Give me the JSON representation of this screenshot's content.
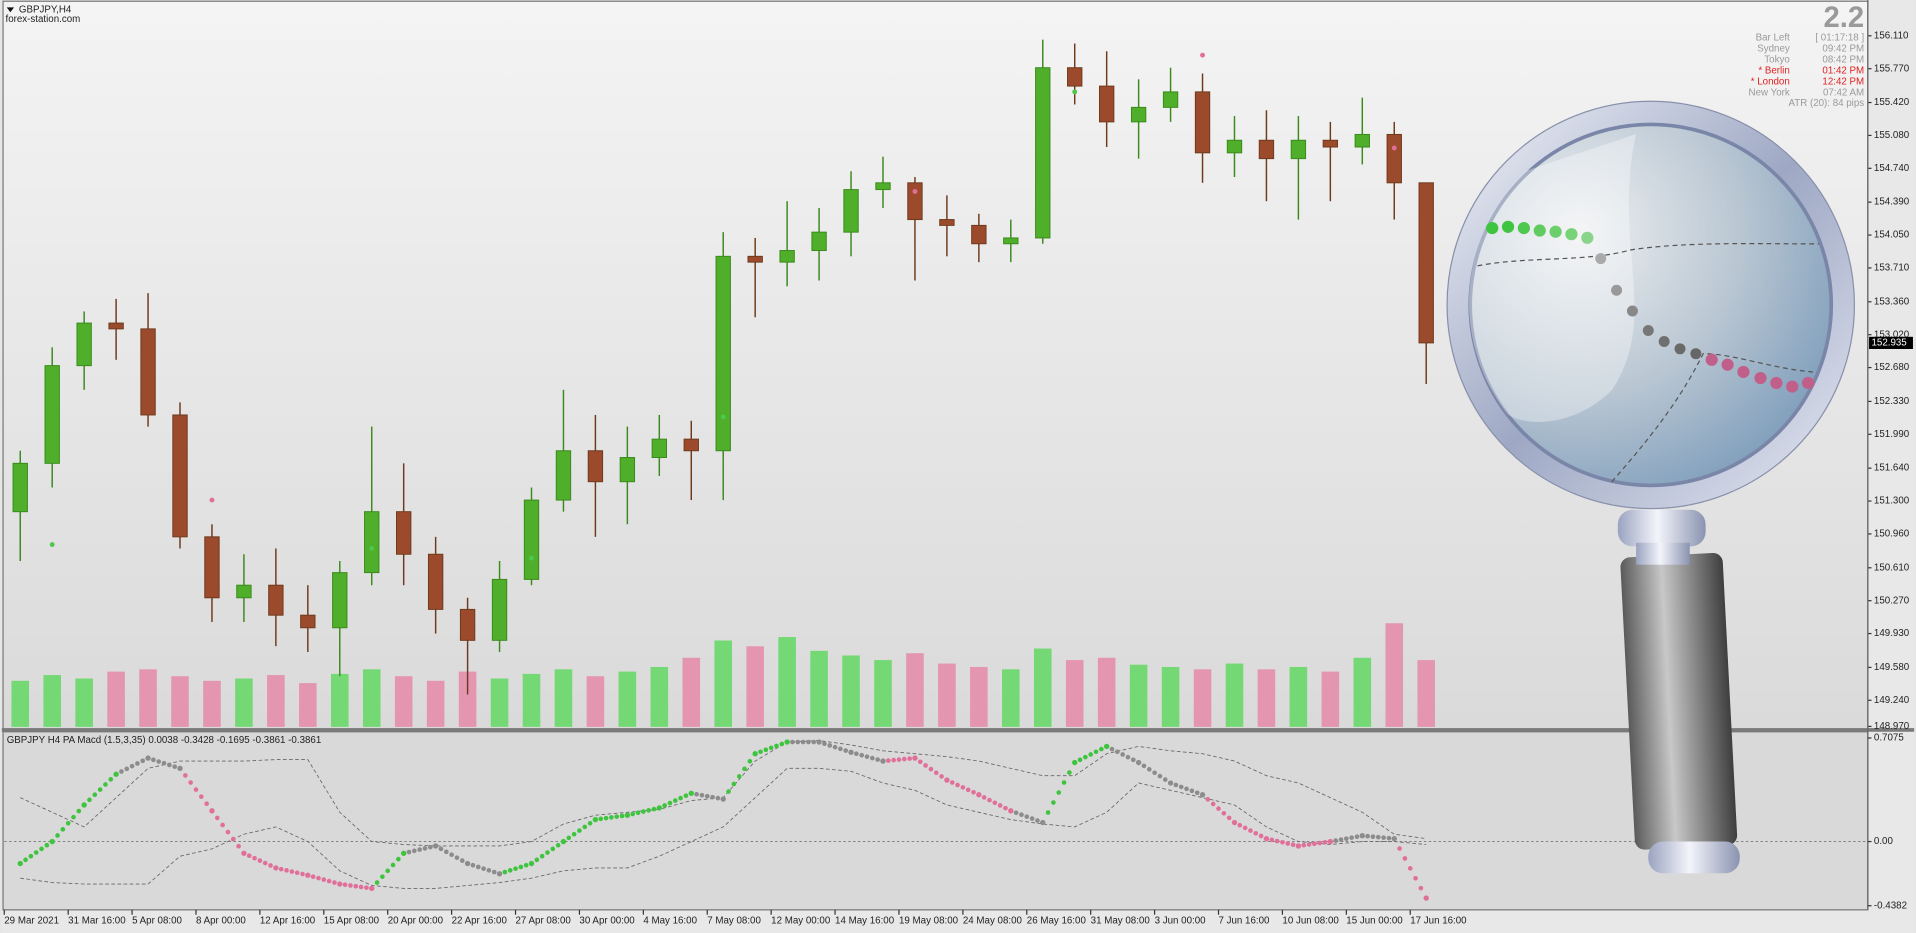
{
  "chart_data": [
    {
      "type": "candlestick",
      "title": "GBPJPY,H4",
      "subtitle": "forex-station.com",
      "categories": [
        "29 Mar 2021",
        null,
        "31 Mar 16:00",
        null,
        "5 Apr 08:00",
        null,
        "8 Apr 00:00",
        null,
        "12 Apr 16:00",
        null,
        "15 Apr 08:00",
        null,
        "20 Apr 00:00",
        null,
        "22 Apr 16:00",
        null,
        "27 Apr 08:00",
        null,
        "30 Apr 00:00",
        null,
        "4 May 16:00",
        null,
        "7 May 08:00",
        null,
        "12 May 00:00",
        null,
        "14 May 16:00",
        null,
        "19 May 08:00",
        null,
        "24 May 08:00",
        null,
        "26 May 16:00",
        null,
        "31 May 08:00",
        null,
        "3 Jun 00:00",
        null,
        "7 Jun 16:00",
        null,
        "10 Jun 08:00",
        null,
        "15 Jun 00:00",
        null,
        "17 Jun 16:00"
      ],
      "open": [
        151.19,
        151.69,
        152.7,
        153.14,
        153.08,
        152.19,
        150.93,
        150.3,
        150.43,
        150.12,
        149.99,
        150.56,
        151.19,
        150.75,
        150.18,
        149.86,
        150.49,
        151.31,
        151.82,
        151.5,
        151.75,
        151.94,
        151.82,
        153.83,
        153.77,
        153.89,
        154.08,
        154.52,
        154.59,
        154.21,
        154.15,
        153.96,
        154.02,
        155.78,
        155.59,
        155.22,
        155.37,
        155.53,
        154.9,
        155.03,
        154.84,
        155.03,
        154.96,
        155.09,
        154.59
      ],
      "high": [
        151.82,
        152.89,
        153.26,
        153.39,
        153.45,
        152.32,
        151.06,
        150.75,
        150.81,
        150.43,
        150.68,
        152.07,
        151.69,
        150.93,
        150.3,
        150.68,
        151.44,
        152.45,
        152.19,
        152.07,
        152.19,
        152.13,
        154.08,
        154.02,
        154.4,
        154.33,
        154.71,
        154.86,
        154.65,
        154.46,
        154.27,
        154.21,
        156.07,
        156.03,
        155.95,
        155.66,
        155.78,
        155.72,
        155.28,
        155.34,
        155.28,
        155.22,
        155.47,
        155.22,
        154.59
      ],
      "low": [
        150.68,
        151.44,
        152.45,
        152.76,
        152.07,
        150.81,
        150.05,
        150.05,
        149.8,
        149.74,
        149.49,
        150.43,
        150.43,
        149.93,
        149.3,
        149.74,
        150.43,
        151.19,
        150.93,
        151.06,
        151.56,
        151.31,
        151.31,
        153.2,
        153.52,
        153.58,
        153.83,
        154.33,
        153.58,
        153.83,
        153.77,
        153.77,
        153.96,
        155.4,
        154.96,
        154.84,
        155.22,
        154.59,
        154.65,
        154.4,
        154.21,
        154.4,
        154.78,
        154.21,
        152.51
      ],
      "close": [
        151.69,
        152.7,
        153.14,
        153.08,
        152.19,
        150.93,
        150.3,
        150.43,
        150.12,
        149.99,
        150.56,
        151.19,
        150.75,
        150.18,
        149.86,
        150.49,
        151.31,
        151.82,
        151.5,
        151.75,
        151.94,
        151.82,
        153.83,
        153.77,
        153.89,
        154.08,
        154.52,
        154.59,
        154.21,
        154.15,
        153.96,
        154.02,
        155.78,
        155.59,
        155.22,
        155.37,
        155.53,
        154.9,
        155.03,
        154.84,
        155.03,
        154.96,
        155.09,
        154.59,
        152.935
      ],
      "volume": [
        4000,
        4500,
        4200,
        4800,
        5000,
        4400,
        4000,
        4200,
        4500,
        3800,
        4600,
        5000,
        4400,
        4000,
        4800,
        4200,
        4600,
        5000,
        4400,
        4800,
        5200,
        6000,
        7500,
        7000,
        7800,
        6600,
        6200,
        5800,
        6400,
        5500,
        5200,
        5000,
        6800,
        5800,
        6000,
        5400,
        5200,
        5000,
        5500,
        5000,
        5200,
        4800,
        6000,
        9000,
        5800
      ],
      "up_color": "#3a8a1c",
      "down_color": "#6e3a1c",
      "volume_up_color": "#62d862",
      "volume_down_color": "#e58aa8",
      "signals": [
        {
          "x": 1,
          "price": 150.85,
          "color": "#4cc84c"
        },
        {
          "x": 11,
          "price": 150.81,
          "color": "#4cc84c"
        },
        {
          "x": 16,
          "price": 150.71,
          "color": "#4cc84c"
        },
        {
          "x": 22,
          "price": 152.17,
          "color": "#4cc84c"
        },
        {
          "x": 33,
          "price": 155.53,
          "color": "#4cc84c"
        },
        {
          "x": 6,
          "price": 151.31,
          "color": "#e0709a"
        },
        {
          "x": 28,
          "price": 154.5,
          "color": "#e0709a"
        },
        {
          "x": 37,
          "price": 155.91,
          "color": "#e0709a"
        },
        {
          "x": 43,
          "price": 154.95,
          "color": "#e0709a"
        }
      ],
      "current_price": 152.935,
      "ylim": [
        148.94,
        156.48
      ],
      "yticks": [
        {
          "value": 156.11,
          "label": "156.110"
        },
        {
          "value": 155.77,
          "label": "155.770"
        },
        {
          "value": 155.42,
          "label": "155.420"
        },
        {
          "value": 155.08,
          "label": "155.080"
        },
        {
          "value": 154.74,
          "label": "154.740"
        },
        {
          "value": 154.39,
          "label": "154.390"
        },
        {
          "value": 154.05,
          "label": "154.050"
        },
        {
          "value": 153.71,
          "label": "153.710"
        },
        {
          "value": 153.36,
          "label": "153.360"
        },
        {
          "value": 153.02,
          "label": "153.020"
        },
        {
          "value": 152.68,
          "label": "152.680"
        },
        {
          "value": 152.33,
          "label": "152.330"
        },
        {
          "value": 151.99,
          "label": "151.990"
        },
        {
          "value": 151.64,
          "label": "151.640"
        },
        {
          "value": 151.3,
          "label": "151.300"
        },
        {
          "value": 150.96,
          "label": "150.960"
        },
        {
          "value": 150.61,
          "label": "150.610"
        },
        {
          "value": 150.27,
          "label": "150.270"
        },
        {
          "value": 149.93,
          "label": "149.930"
        },
        {
          "value": 149.58,
          "label": "149.580"
        },
        {
          "value": 149.24,
          "label": "149.240"
        },
        {
          "value": 148.97,
          "label": "148.970"
        }
      ],
      "info_panel": {
        "version": "2.2",
        "rows": [
          [
            "Bar Left",
            "[ 01:17:18 ]",
            "#9a9a9a"
          ],
          [
            "Sydney",
            "09:42 PM",
            "#9a9a9a"
          ],
          [
            "Tokyo",
            "08:42 PM",
            "#9a9a9a"
          ],
          [
            "* Berlin",
            "01:42 PM",
            "#e02020"
          ],
          [
            "* London",
            "12:42 PM",
            "#e02020"
          ],
          [
            "New York",
            "07:42 AM",
            "#9a9a9a"
          ]
        ],
        "atr": "ATR (20): 84 pips"
      }
    },
    {
      "type": "dots",
      "title": "GBPJPY H4 PA Macd (1.5,3,35) 0.0038 -0.3428 -0.1695 -0.3861 -0.3861",
      "values": [
        -0.15,
        0,
        0.25,
        0.46,
        0.57,
        0.5,
        0.21,
        -0.08,
        -0.18,
        -0.23,
        -0.29,
        -0.32,
        -0.08,
        -0.03,
        -0.15,
        -0.22,
        -0.15,
        0,
        0.15,
        0.18,
        0.23,
        0.33,
        0.29,
        0.6,
        0.68,
        0.68,
        0.61,
        0.55,
        0.57,
        0.42,
        0.32,
        0.21,
        0.13,
        0.54,
        0.65,
        0.54,
        0.4,
        0.32,
        0.13,
        0.02,
        -0.03,
        0,
        0.04,
        0.02,
        -0.3861
      ],
      "point_colors": [
        "#3ec43e",
        "#3ec43e",
        "#3ec43e",
        "#3ec43e",
        "#8c8c8c",
        "#8c8c8c",
        "#e0709a",
        "#e0709a",
        "#e0709a",
        "#e0709a",
        "#e0709a",
        "#e0709a",
        "#3ec43e",
        "#8c8c8c",
        "#8c8c8c",
        "#8c8c8c",
        "#3ec43e",
        "#3ec43e",
        "#3ec43e",
        "#3ec43e",
        "#3ec43e",
        "#3ec43e",
        "#8c8c8c",
        "#3ec43e",
        "#3ec43e",
        "#8c8c8c",
        "#8c8c8c",
        "#8c8c8c",
        "#e0709a",
        "#e0709a",
        "#e0709a",
        "#e0709a",
        "#8c8c8c",
        "#3ec43e",
        "#3ec43e",
        "#8c8c8c",
        "#8c8c8c",
        "#8c8c8c",
        "#e0709a",
        "#e0709a",
        "#e0709a",
        "#e0709a",
        "#8c8c8c",
        "#8c8c8c",
        "#e0709a"
      ],
      "upper_band": [
        0.3,
        0.2,
        0.1,
        0.3,
        0.5,
        0.55,
        0.55,
        0.55,
        0.56,
        0.56,
        0.2,
        0,
        -0.02,
        -0.03,
        -0.03,
        -0.03,
        0,
        0.12,
        0.18,
        0.2,
        0.22,
        0.28,
        0.3,
        0.55,
        0.68,
        0.69,
        0.66,
        0.62,
        0.6,
        0.58,
        0.55,
        0.5,
        0.45,
        0.45,
        0.6,
        0.65,
        0.62,
        0.6,
        0.55,
        0.45,
        0.4,
        0.3,
        0.2,
        0.05,
        0.02
      ],
      "lower_band": [
        -0.25,
        -0.28,
        -0.29,
        -0.29,
        -0.29,
        -0.1,
        -0.05,
        0.05,
        0.1,
        0,
        -0.2,
        -0.3,
        -0.32,
        -0.32,
        -0.3,
        -0.28,
        -0.25,
        -0.2,
        -0.18,
        -0.18,
        -0.1,
        0,
        0.1,
        0.3,
        0.5,
        0.5,
        0.48,
        0.4,
        0.35,
        0.25,
        0.2,
        0.15,
        0.12,
        0.1,
        0.2,
        0.4,
        0.35,
        0.3,
        0.25,
        0.1,
        0,
        -0.02,
        0,
        0,
        -0.02
      ],
      "ylim": [
        -0.458,
        0.75
      ],
      "yticks": [
        0.7075,
        {
          "value": 0,
          "label": "0.00"
        },
        -0.4382
      ],
      "zero_line": true
    }
  ]
}
